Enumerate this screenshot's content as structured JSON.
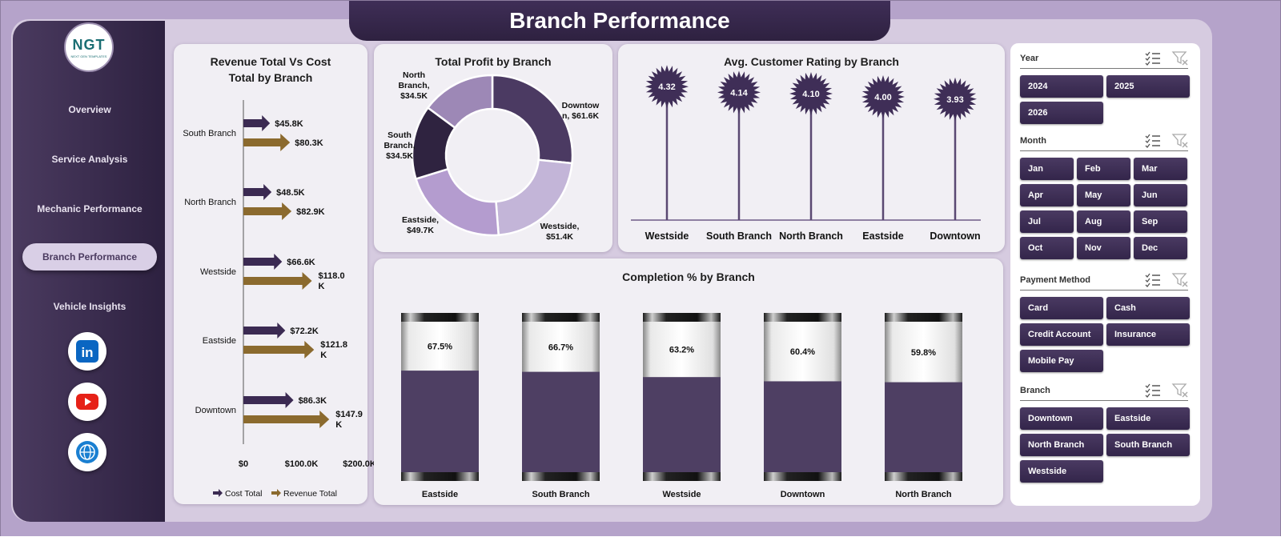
{
  "header": {
    "title": "Branch Performance"
  },
  "logo": {
    "text": "NGT",
    "subtext": "NEXT GEN TEMPLATES"
  },
  "sidebar": {
    "items": [
      {
        "label": "Overview",
        "active": false
      },
      {
        "label": "Service Analysis",
        "active": false
      },
      {
        "label": "Mechanic Performance",
        "active": false
      },
      {
        "label": "Branch Performance",
        "active": true
      },
      {
        "label": "Vehicle Insights",
        "active": false
      }
    ],
    "social": [
      {
        "icon": "linkedin-icon",
        "label": "in"
      },
      {
        "icon": "youtube-icon",
        "label": ""
      },
      {
        "icon": "globe-icon",
        "label": ""
      }
    ]
  },
  "charts": {
    "revenue_cost": {
      "title": "Revenue Total Vs Cost Total by Branch",
      "categories": [
        "South Branch",
        "North Branch",
        "Westside",
        "Eastside",
        "Downtown"
      ],
      "cost_labels": [
        "$45.8K",
        "$48.5K",
        "$66.6K",
        "$72.2K",
        "$86.3K"
      ],
      "revenue_labels": [
        "$80.3K",
        "$82.9K",
        "$118.0 K",
        "$121.8 K",
        "$147.9 K"
      ],
      "axis_ticks": [
        "$0",
        "$100.0K",
        "$200.0K"
      ],
      "legend": [
        "Cost Total",
        "Revenue Total"
      ]
    },
    "profit": {
      "title": "Total Profit by Branch",
      "labels": [
        "Downtown, $61.6K",
        "Westside, $51.4K",
        "Eastside, $49.7K",
        "South Branch, $34.5K",
        "North Branch, $34.5K"
      ]
    },
    "rating": {
      "title": "Avg. Customer Rating by Branch",
      "value_labels": [
        "4.32",
        "4.14",
        "4.10",
        "4.00",
        "3.93"
      ]
    },
    "completion": {
      "title": "Completion % by Branch",
      "value_labels": [
        "67.5%",
        "66.7%",
        "63.2%",
        "60.4%",
        "59.8%"
      ]
    }
  },
  "chart_data": [
    {
      "type": "bar",
      "title": "Revenue Total Vs Cost Total by Branch",
      "orientation": "horizontal",
      "categories": [
        "South Branch",
        "North Branch",
        "Westside",
        "Eastside",
        "Downtown"
      ],
      "series": [
        {
          "name": "Cost Total",
          "values": [
            45.8,
            48.5,
            66.6,
            72.2,
            86.3
          ],
          "color": "#3b2a52"
        },
        {
          "name": "Revenue Total",
          "values": [
            80.3,
            82.9,
            118.0,
            121.8,
            147.9
          ],
          "color": "#8b6a2e"
        }
      ],
      "xlim": [
        0,
        200
      ],
      "legend": "bottom"
    },
    {
      "type": "pie",
      "title": "Total Profit by Branch",
      "categories": [
        "Downtown",
        "Westside",
        "Eastside",
        "South Branch",
        "North Branch"
      ],
      "values": [
        61.6,
        51.4,
        49.7,
        34.5,
        34.5
      ],
      "colors": [
        "#4b3a62",
        "#c3b5d8",
        "#b49ccf",
        "#2f2340",
        "#9d88b6"
      ]
    },
    {
      "type": "scatter",
      "title": "Avg. Customer Rating by Branch",
      "categories": [
        "Westside",
        "South Branch",
        "North Branch",
        "Eastside",
        "Downtown"
      ],
      "values": [
        4.32,
        4.14,
        4.1,
        4.0,
        3.93
      ]
    },
    {
      "type": "bar",
      "title": "Completion % by Branch",
      "categories": [
        "Eastside",
        "South Branch",
        "Westside",
        "Downtown",
        "North Branch"
      ],
      "values": [
        67.5,
        66.7,
        63.2,
        60.4,
        59.8
      ],
      "ylim": [
        0,
        100
      ]
    }
  ],
  "filters": {
    "year": {
      "title": "Year",
      "options": [
        "2024",
        "2025",
        "2026"
      ]
    },
    "month": {
      "title": "Month",
      "options": [
        "Jan",
        "Feb",
        "Mar",
        "Apr",
        "May",
        "Jun",
        "Jul",
        "Aug",
        "Sep",
        "Oct",
        "Nov",
        "Dec"
      ]
    },
    "payment": {
      "title": "Payment Method",
      "options": [
        "Card",
        "Cash",
        "Credit Account",
        "Insurance",
        "Mobile Pay"
      ]
    },
    "branch": {
      "title": "Branch",
      "options": [
        "Downtown",
        "Eastside",
        "North Branch",
        "South Branch",
        "Westside"
      ]
    }
  },
  "colors": {
    "primary": "#3f2e57",
    "accent": "#8b6a2e",
    "background": "#b5a3ca"
  }
}
